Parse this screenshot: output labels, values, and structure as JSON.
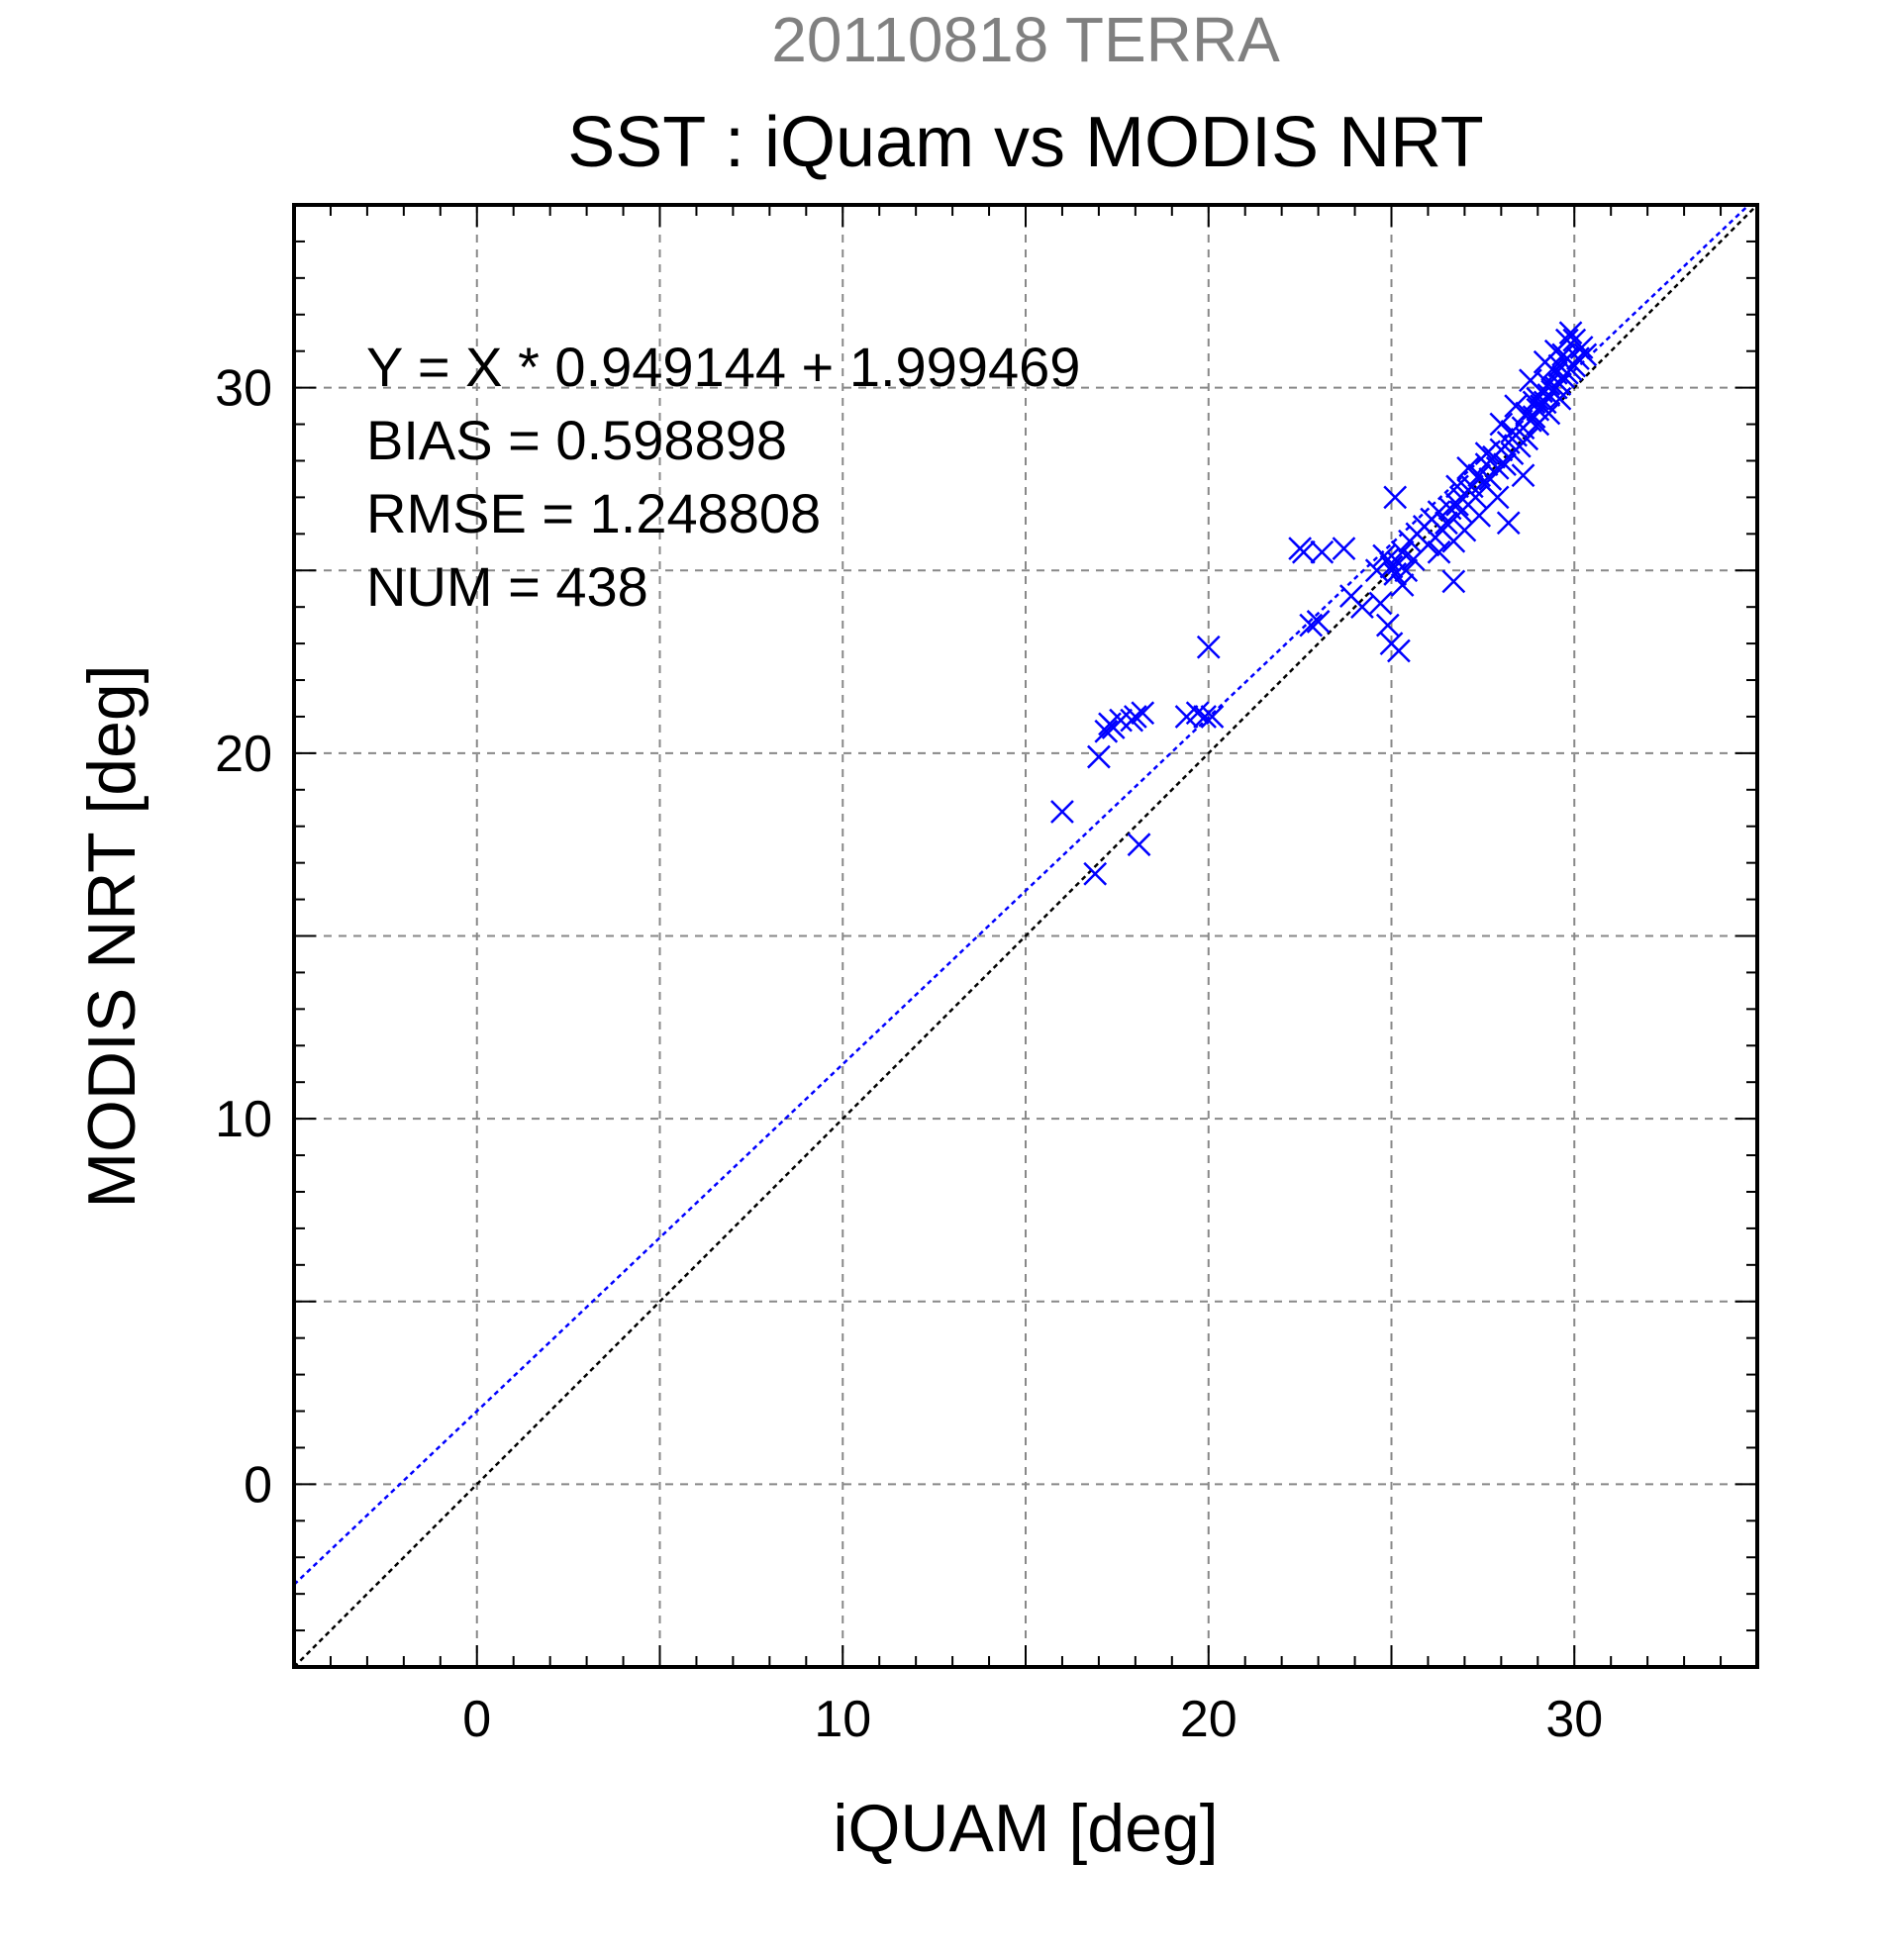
{
  "chart_data": {
    "type": "scatter",
    "suptitle": "20110818 TERRA",
    "title": "SST : iQuam vs MODIS NRT",
    "xlabel": "iQUAM [deg]",
    "ylabel": "MODIS NRT [deg]",
    "xlim": [
      -5,
      35
    ],
    "ylim": [
      -5,
      35
    ],
    "x_ticks": [
      0,
      10,
      20,
      30
    ],
    "y_ticks": [
      0,
      10,
      20,
      30
    ],
    "grid": true,
    "colors": {
      "points": "#0000ff",
      "fit": "#0000ff",
      "one_to_one": "#000000",
      "suptitle": "#808080",
      "text": "#000000"
    },
    "annotations": [
      "Y = X * 0.949144 + 1.999469",
      "BIAS = 0.598898",
      "RMSE = 1.248808",
      "NUM = 438"
    ],
    "fit_line": {
      "slope": 0.949144,
      "intercept": 1.999469
    },
    "one_to_one_line": {
      "slope": 1,
      "intercept": 0
    },
    "series": [
      {
        "marker": "x",
        "x": [
          16.0,
          16.9,
          17.0,
          17.2,
          17.3,
          17.4,
          17.6,
          17.9,
          18.0,
          18.1,
          18.2,
          19.4,
          19.7,
          19.9,
          20.0,
          20.1,
          22.5,
          22.6,
          22.8,
          23.0,
          23.1,
          23.7,
          23.9,
          24.2,
          24.6,
          24.8,
          24.9,
          25.0,
          25.1,
          25.2,
          25.3,
          25.4,
          24.9,
          25.0,
          25.2,
          25.1,
          25.3,
          24.7,
          25.5,
          25.7,
          25.9,
          26.1,
          26.3,
          26.5,
          26.7,
          26.9,
          27.1,
          26.2,
          26.6,
          26.8,
          27.2,
          27.4,
          27.6,
          27.8,
          28.0,
          28.2,
          28.4,
          27.5,
          27.9,
          28.3,
          28.6,
          28.8,
          29.0,
          29.2,
          29.4,
          29.6,
          29.8,
          30.0,
          28.9,
          29.1,
          29.3,
          29.5,
          29.7,
          29.9,
          30.1,
          30.3,
          28.7,
          29.0,
          29.3,
          29.6,
          28.5,
          28.1,
          27.7,
          27.3,
          26.9,
          26.4,
          26.0,
          25.6,
          29.8,
          29.5,
          29.2,
          28.8,
          29.9,
          30.2,
          28.6,
          28.2,
          27.9,
          27.4,
          27.0,
          26.7,
          26.3,
          28.4,
          28.0,
          29.4,
          29.7,
          30.0,
          29.1,
          28.9,
          27.6,
          27.1,
          26.8,
          28.3,
          29.6,
          28.7,
          29.0,
          29.3,
          29.5,
          29.8
        ],
        "y": [
          18.4,
          16.7,
          19.9,
          20.6,
          20.8,
          20.7,
          20.9,
          20.9,
          21.0,
          17.5,
          21.1,
          21.0,
          21.1,
          21.0,
          22.9,
          21.0,
          25.6,
          25.5,
          23.5,
          23.6,
          25.5,
          25.6,
          24.3,
          24.0,
          25.0,
          25.4,
          25.3,
          25.1,
          24.9,
          25.2,
          25.5,
          25.0,
          23.5,
          23.0,
          22.8,
          27.0,
          24.6,
          24.1,
          25.8,
          26.0,
          26.2,
          26.4,
          26.6,
          26.3,
          24.7,
          27.0,
          27.2,
          25.9,
          26.7,
          26.8,
          27.3,
          27.6,
          27.9,
          28.1,
          28.3,
          28.5,
          28.7,
          27.4,
          27.8,
          28.2,
          28.9,
          29.1,
          29.4,
          29.6,
          29.9,
          30.1,
          30.4,
          30.6,
          29.2,
          29.5,
          29.8,
          30.0,
          30.3,
          30.5,
          30.8,
          30.9,
          28.6,
          29.0,
          29.3,
          29.7,
          28.4,
          27.9,
          27.5,
          27.0,
          26.6,
          26.1,
          25.7,
          25.3,
          31.3,
          31.0,
          30.7,
          30.2,
          31.5,
          31.1,
          27.6,
          26.3,
          27.0,
          26.5,
          26.1,
          25.8,
          25.5,
          29.5,
          29.0,
          30.5,
          30.9,
          31.3,
          29.9,
          29.6,
          28.2,
          27.8,
          27.3,
          28.8,
          30.6,
          29.3,
          29.7,
          30.1,
          30.4,
          30.8
        ]
      }
    ]
  }
}
